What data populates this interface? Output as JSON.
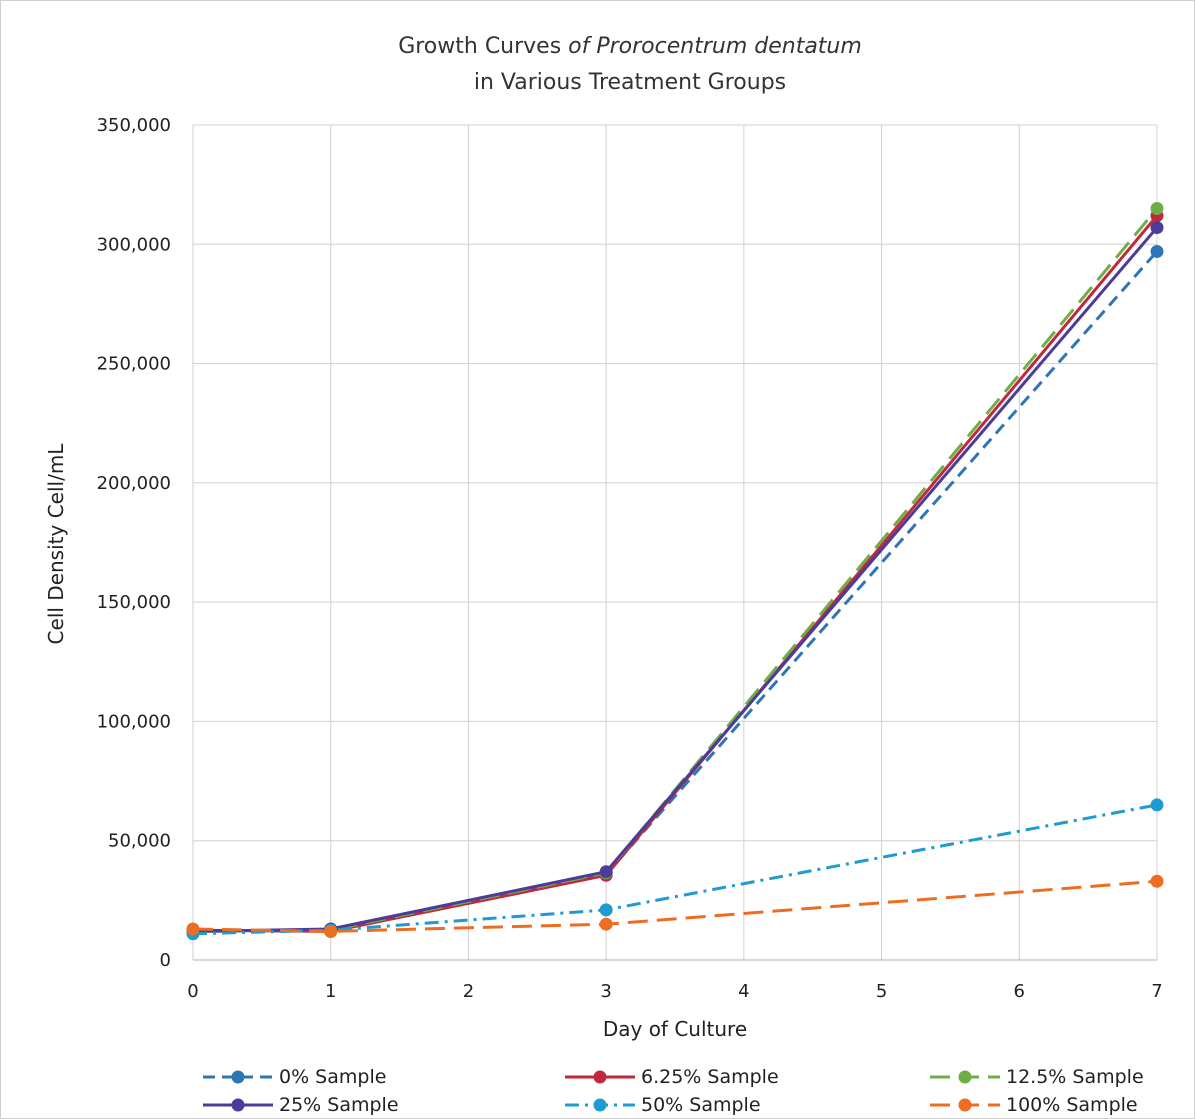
{
  "chart_data": {
    "type": "line",
    "title": "Growth Curves ",
    "title_italic": "of Prorocentrum dentatum",
    "subtitle": "in Various Treatment Groups",
    "xlabel": "Day of Culture",
    "ylabel": "Cell Density Cell/mL",
    "x_ticks": [
      "0",
      "1",
      "2",
      "3",
      "4",
      "5",
      "6",
      "7"
    ],
    "y_ticks": [
      "0",
      "50,000",
      "100,000",
      "150,000",
      "200,000",
      "250,000",
      "300,000",
      "350,000"
    ],
    "xlim": [
      0,
      7
    ],
    "ylim": [
      0,
      350000
    ],
    "grid": true,
    "legend_position": "bottom",
    "x": [
      0,
      1,
      3,
      7
    ],
    "series": [
      {
        "name": "0% Sample",
        "color": "#2E75B6",
        "dash": "dashed",
        "values": [
          12000,
          12500,
          36000,
          297000
        ]
      },
      {
        "name": "6.25% Sample",
        "color": "#C0283C",
        "dash": "solid",
        "values": [
          12500,
          12000,
          35500,
          312000
        ]
      },
      {
        "name": "12.5% Sample",
        "color": "#70AD47",
        "dash": "longdash",
        "values": [
          12000,
          12500,
          36500,
          315000
        ]
      },
      {
        "name": "25% Sample",
        "color": "#4B3C9A",
        "dash": "solid",
        "values": [
          12000,
          13000,
          37000,
          307000
        ]
      },
      {
        "name": "50% Sample",
        "color": "#1F9BD1",
        "dash": "dashdot",
        "values": [
          11000,
          12500,
          21000,
          65000
        ]
      },
      {
        "name": "100% Sample",
        "color": "#ED6D22",
        "dash": "longdash",
        "values": [
          13000,
          12000,
          15000,
          33000
        ]
      }
    ]
  }
}
